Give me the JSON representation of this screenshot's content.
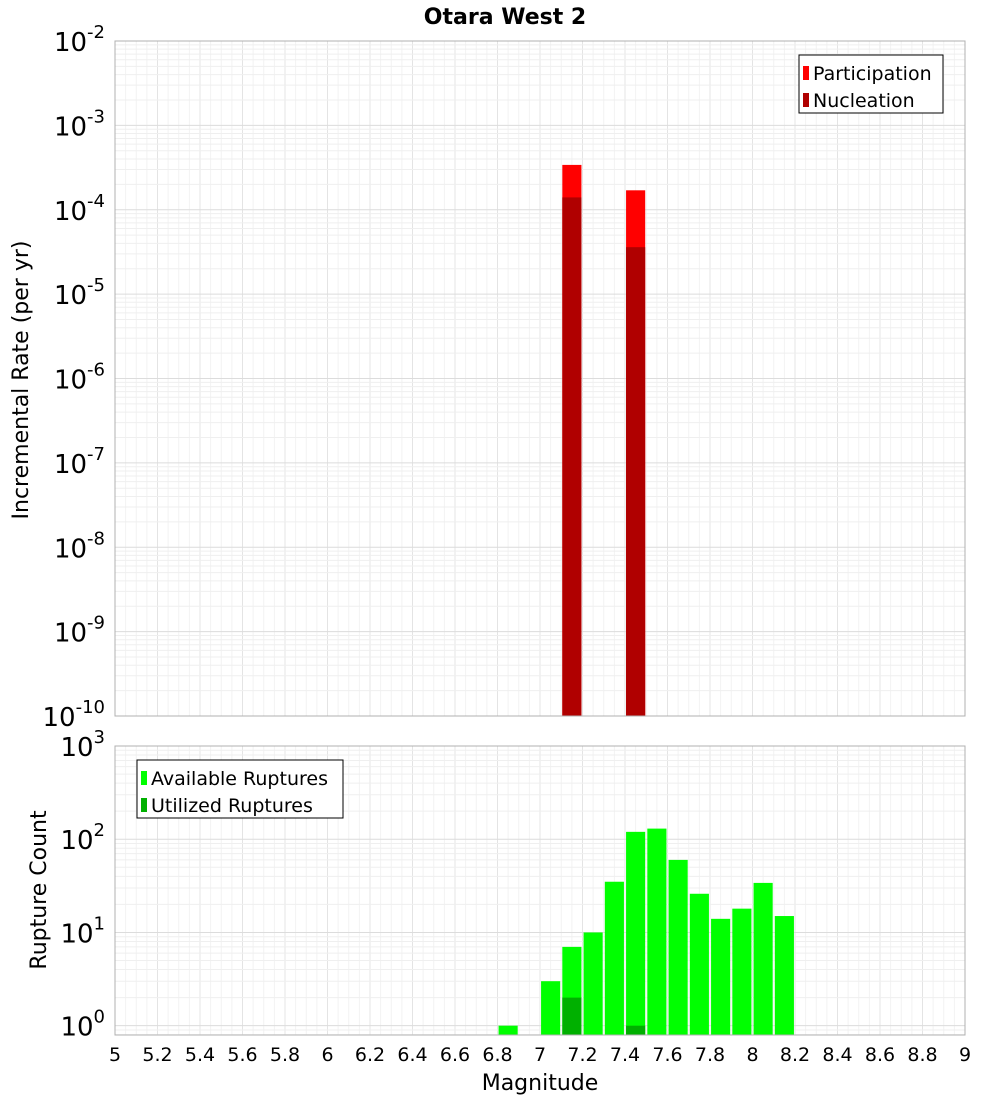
{
  "chart_data": [
    {
      "type": "bar",
      "title": "Otara West 2",
      "xlabel": "",
      "ylabel": "Incremental Rate (per yr)",
      "yscale": "log",
      "xlim": [
        5,
        9
      ],
      "ylim_exponents": [
        -10,
        -2
      ],
      "ytick_base": "10",
      "yticks": [
        -10,
        -9,
        -8,
        -7,
        -6,
        -5,
        -4,
        -3,
        -2
      ],
      "grid": true,
      "legend_position": "top-right",
      "bar_width": 0.09,
      "series": [
        {
          "name": "Participation",
          "color": "#ff0000",
          "x": [
            7.15,
            7.45
          ],
          "values": [
            0.00034,
            0.00017
          ]
        },
        {
          "name": "Nucleation",
          "color": "#b00000",
          "x": [
            7.15,
            7.45
          ],
          "values": [
            0.00014,
            3.6e-05
          ]
        }
      ]
    },
    {
      "type": "bar",
      "title": "",
      "xlabel": "Magnitude",
      "ylabel": "Rupture Count",
      "yscale": "log",
      "xlim": [
        5,
        9
      ],
      "ylim_exponents": [
        -0.1,
        3
      ],
      "ytick_base": "10",
      "yticks": [
        0,
        1,
        2,
        3
      ],
      "xticks": [
        "5",
        "5.2",
        "5.4",
        "5.6",
        "5.8",
        "6",
        "6.2",
        "6.4",
        "6.6",
        "6.8",
        "7",
        "7.2",
        "7.4",
        "7.6",
        "7.8",
        "8",
        "8.2",
        "8.4",
        "8.6",
        "8.8",
        "9"
      ],
      "grid": true,
      "legend_position": "top-left",
      "bar_width": 0.09,
      "series": [
        {
          "name": "Available Ruptures",
          "color": "#00ff00",
          "x": [
            6.85,
            7.05,
            7.15,
            7.25,
            7.35,
            7.45,
            7.55,
            7.65,
            7.75,
            7.85,
            7.95,
            8.05,
            8.15
          ],
          "values": [
            1,
            3,
            7,
            10,
            35,
            120,
            130,
            60,
            26,
            14,
            18,
            34,
            15
          ]
        },
        {
          "name": "Utilized Ruptures",
          "color": "#00b000",
          "x": [
            7.15,
            7.45
          ],
          "values": [
            2,
            1
          ]
        }
      ]
    }
  ]
}
